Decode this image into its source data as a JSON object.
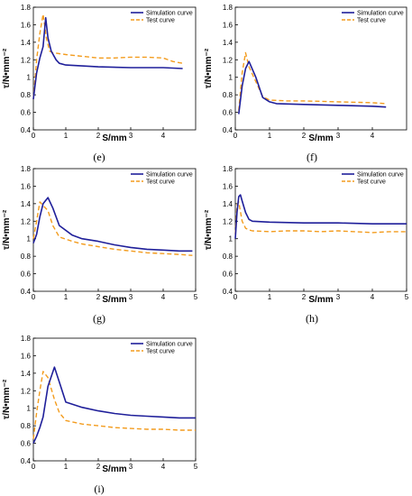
{
  "colors": {
    "simulation": "#1f1f9a",
    "test": "#f39c1e"
  },
  "chart_data": [
    {
      "type": "line",
      "panel": "(e)",
      "xlabel": "S/mm",
      "ylabel": "τ/N•mm⁻²",
      "xlim": [
        0,
        5
      ],
      "ylim": [
        0.4,
        1.8
      ],
      "xticks": [
        0,
        1,
        2,
        3,
        4
      ],
      "yticks": [
        0.4,
        0.6,
        0.8,
        1.0,
        1.2,
        1.4,
        1.6,
        1.8
      ],
      "legend": "top-right",
      "series": [
        {
          "name": "Simulation curve",
          "style": "solid",
          "x": [
            0,
            0.1,
            0.2,
            0.3,
            0.38,
            0.45,
            0.55,
            0.7,
            0.8,
            1,
            2,
            3,
            4,
            4.6
          ],
          "y": [
            0.75,
            1.05,
            1.22,
            1.35,
            1.68,
            1.45,
            1.3,
            1.2,
            1.16,
            1.14,
            1.12,
            1.11,
            1.11,
            1.1
          ]
        },
        {
          "name": "Test curve",
          "style": "dashed",
          "x": [
            0,
            0.1,
            0.2,
            0.3,
            0.4,
            0.5,
            0.6,
            0.8,
            1,
            1.5,
            2,
            2.5,
            3,
            3.5,
            4,
            4.3,
            4.6
          ],
          "y": [
            0.75,
            1.2,
            1.5,
            1.72,
            1.45,
            1.3,
            1.28,
            1.27,
            1.26,
            1.24,
            1.22,
            1.22,
            1.23,
            1.23,
            1.22,
            1.18,
            1.16
          ]
        }
      ]
    },
    {
      "type": "line",
      "panel": "(f)",
      "xlabel": "S/mm",
      "ylabel": "τ/N•mm⁻²",
      "xlim": [
        0,
        5
      ],
      "ylim": [
        0.4,
        1.8
      ],
      "xticks": [
        0,
        1,
        2,
        3,
        4
      ],
      "yticks": [
        0.4,
        0.6,
        0.8,
        1.0,
        1.2,
        1.4,
        1.6,
        1.8
      ],
      "legend": "top-right",
      "series": [
        {
          "name": "Simulation curve",
          "style": "solid",
          "x": [
            0.1,
            0.2,
            0.3,
            0.4,
            0.6,
            0.8,
            1.0,
            1.2,
            2,
            3,
            4,
            4.4
          ],
          "y": [
            0.58,
            0.9,
            1.1,
            1.18,
            1.0,
            0.77,
            0.72,
            0.7,
            0.69,
            0.68,
            0.67,
            0.66
          ]
        },
        {
          "name": "Test curve",
          "style": "dashed",
          "x": [
            0.1,
            0.2,
            0.3,
            0.4,
            0.6,
            0.8,
            1.0,
            1.5,
            2,
            3,
            4,
            4.4
          ],
          "y": [
            0.62,
            1.05,
            1.28,
            1.12,
            0.95,
            0.78,
            0.74,
            0.73,
            0.73,
            0.72,
            0.71,
            0.7
          ]
        }
      ]
    },
    {
      "type": "line",
      "panel": "(g)",
      "xlabel": "S/mm",
      "ylabel": "τ/N•mm⁻²",
      "xlim": [
        0,
        5
      ],
      "ylim": [
        0.4,
        1.8
      ],
      "xticks": [
        0,
        1,
        2,
        3,
        4,
        5
      ],
      "yticks": [
        0.4,
        0.6,
        0.8,
        1.0,
        1.2,
        1.4,
        1.6,
        1.8
      ],
      "legend": "top-right",
      "series": [
        {
          "name": "Simulation curve",
          "style": "solid",
          "x": [
            0,
            0.1,
            0.2,
            0.3,
            0.45,
            0.6,
            0.8,
            1.2,
            1.5,
            2,
            2.5,
            3,
            3.5,
            4,
            4.5,
            4.9
          ],
          "y": [
            0.95,
            1.05,
            1.25,
            1.4,
            1.47,
            1.35,
            1.15,
            1.04,
            1.0,
            0.97,
            0.93,
            0.9,
            0.88,
            0.87,
            0.86,
            0.86
          ]
        },
        {
          "name": "Test curve",
          "style": "dashed",
          "x": [
            0,
            0.1,
            0.2,
            0.3,
            0.45,
            0.6,
            0.8,
            1.2,
            1.5,
            2,
            2.5,
            3,
            3.5,
            4,
            4.5,
            4.9
          ],
          "y": [
            1.0,
            1.2,
            1.42,
            1.38,
            1.32,
            1.15,
            1.02,
            0.97,
            0.94,
            0.91,
            0.88,
            0.86,
            0.84,
            0.83,
            0.82,
            0.81
          ]
        }
      ]
    },
    {
      "type": "line",
      "panel": "(h)",
      "xlabel": "S/mm",
      "ylabel": "τ/N•mm⁻²",
      "xlim": [
        0,
        5
      ],
      "ylim": [
        0.4,
        1.8
      ],
      "xticks": [
        0,
        1,
        2,
        3,
        4,
        5
      ],
      "yticks": [
        0.4,
        0.6,
        0.8,
        1.0,
        1.2,
        1.4,
        1.6,
        1.8
      ],
      "legend": "top-right",
      "series": [
        {
          "name": "Simulation curve",
          "style": "solid",
          "x": [
            0,
            0.05,
            0.1,
            0.15,
            0.2,
            0.3,
            0.4,
            0.5,
            1,
            2,
            3,
            4,
            5
          ],
          "y": [
            1.0,
            1.3,
            1.48,
            1.5,
            1.43,
            1.3,
            1.22,
            1.2,
            1.19,
            1.18,
            1.18,
            1.17,
            1.17
          ]
        },
        {
          "name": "Test curve",
          "style": "dashed",
          "x": [
            0,
            0.05,
            0.1,
            0.2,
            0.3,
            0.4,
            0.5,
            1,
            1.5,
            2,
            2.5,
            3,
            3.5,
            4,
            4.5,
            5
          ],
          "y": [
            1.05,
            1.38,
            1.42,
            1.2,
            1.12,
            1.1,
            1.09,
            1.08,
            1.09,
            1.09,
            1.08,
            1.09,
            1.08,
            1.07,
            1.08,
            1.08
          ]
        }
      ]
    },
    {
      "type": "line",
      "panel": "(i)",
      "xlabel": "S/mm",
      "ylabel": "τ/N•mm⁻²",
      "xlim": [
        0,
        5
      ],
      "ylim": [
        0.4,
        1.8
      ],
      "xticks": [
        0,
        1,
        2,
        3,
        4,
        5
      ],
      "yticks": [
        0.4,
        0.6,
        0.8,
        1.0,
        1.2,
        1.4,
        1.6,
        1.8
      ],
      "legend": "top-right",
      "series": [
        {
          "name": "Simulation curve",
          "style": "solid",
          "x": [
            0,
            0.1,
            0.2,
            0.3,
            0.45,
            0.65,
            0.8,
            1.0,
            1.5,
            2,
            2.5,
            3,
            3.5,
            4,
            4.5,
            5
          ],
          "y": [
            0.6,
            0.68,
            0.78,
            0.9,
            1.25,
            1.47,
            1.3,
            1.07,
            1.01,
            0.97,
            0.94,
            0.92,
            0.91,
            0.9,
            0.89,
            0.89
          ]
        },
        {
          "name": "Test curve",
          "style": "dashed",
          "x": [
            0,
            0.1,
            0.2,
            0.3,
            0.45,
            0.65,
            0.8,
            1.0,
            1.5,
            2,
            2.5,
            3,
            3.5,
            4,
            4.5,
            5
          ],
          "y": [
            0.65,
            0.95,
            1.2,
            1.42,
            1.35,
            1.1,
            0.95,
            0.86,
            0.82,
            0.8,
            0.78,
            0.77,
            0.76,
            0.76,
            0.75,
            0.75
          ]
        }
      ]
    }
  ]
}
